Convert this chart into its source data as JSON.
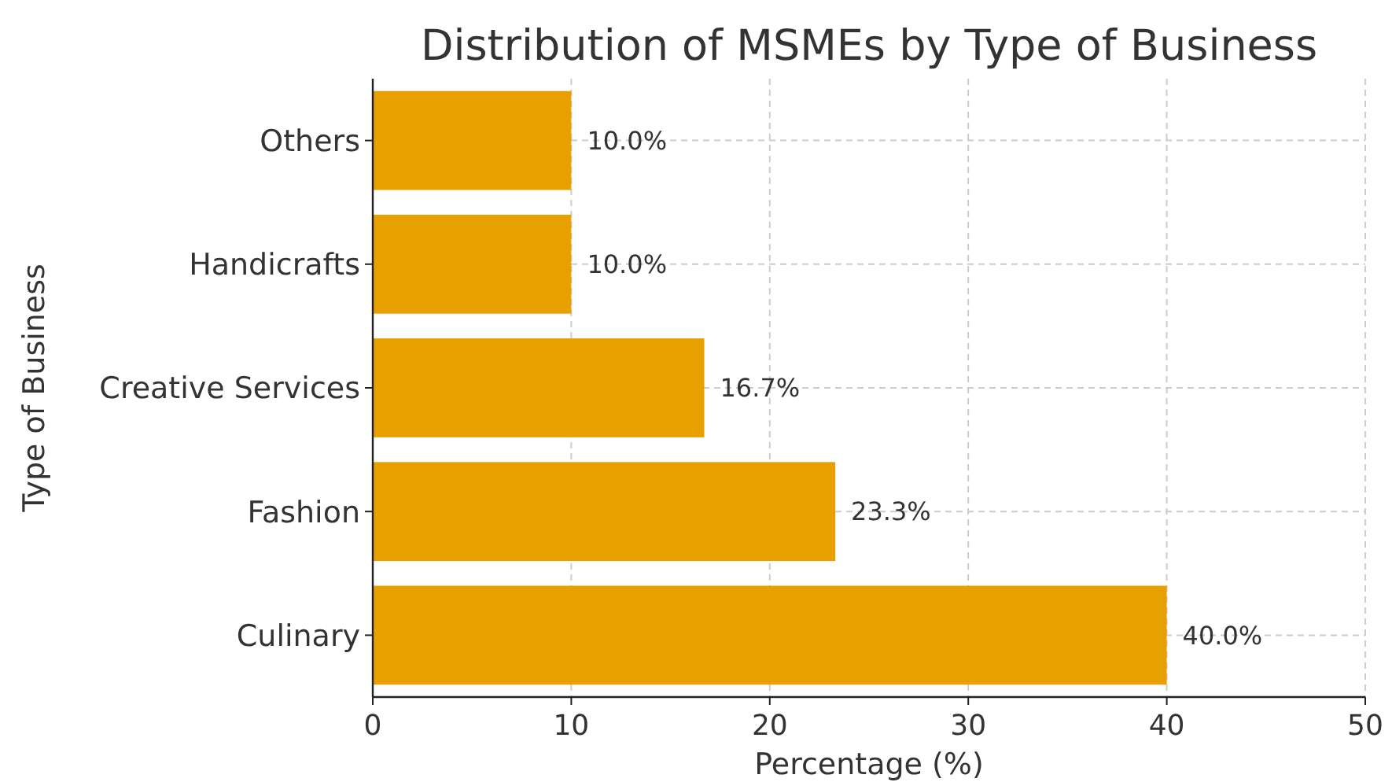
{
  "chart_data": {
    "type": "bar",
    "orientation": "horizontal",
    "title": "Distribution of MSMEs by Type of Business",
    "xlabel": "Percentage (%)",
    "ylabel": "Type of Business",
    "categories": [
      "Others",
      "Handicrafts",
      "Creative Services",
      "Fashion",
      "Culinary"
    ],
    "values": [
      10.0,
      10.0,
      16.7,
      23.3,
      40.0
    ],
    "value_labels": [
      "10.0%",
      "10.0%",
      "16.7%",
      "23.3%",
      "40.0%"
    ],
    "color": "#e8a000",
    "xlim": [
      0,
      50
    ],
    "xticks": [
      0,
      10,
      20,
      30,
      40,
      50
    ],
    "grid": true
  }
}
